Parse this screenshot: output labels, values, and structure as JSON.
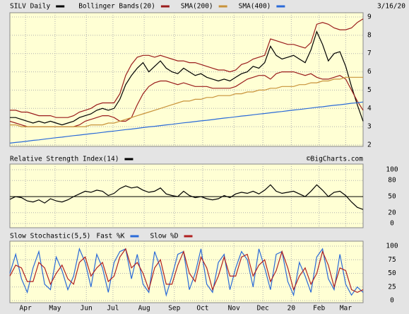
{
  "chart_data": [
    {
      "type": "line",
      "title": "SILV Daily",
      "date": "3/16/20",
      "xlim": [
        0,
        61
      ],
      "xticks": [
        {
          "value": 2.7,
          "label": "Apr"
        },
        {
          "value": 7.8,
          "label": "May"
        },
        {
          "value": 13.2,
          "label": "Jun"
        },
        {
          "value": 17.8,
          "label": "Jul"
        },
        {
          "value": 23.2,
          "label": "Aug"
        },
        {
          "value": 28.4,
          "label": "Sep"
        },
        {
          "value": 33.3,
          "label": "Oct"
        },
        {
          "value": 38.7,
          "label": "Nov"
        },
        {
          "value": 43.7,
          "label": "Dec"
        },
        {
          "value": 48.6,
          "label": "20"
        },
        {
          "value": 53.4,
          "label": "Feb"
        },
        {
          "value": 58,
          "label": "Mar"
        }
      ],
      "ylim": [
        2,
        9
      ],
      "yticks": [
        2,
        3,
        4,
        5,
        6,
        7,
        8,
        9
      ],
      "grid": true,
      "series": [
        {
          "name": "SILV Daily",
          "color": "#000000",
          "values": [
            3.5,
            3.5,
            3.4,
            3.3,
            3.2,
            3.3,
            3.2,
            3.3,
            3.2,
            3.1,
            3.2,
            3.3,
            3.5,
            3.6,
            3.7,
            3.9,
            4.0,
            3.9,
            4.0,
            4.5,
            5.3,
            5.8,
            6.2,
            6.5,
            6.0,
            6.3,
            6.6,
            6.2,
            6.0,
            5.9,
            6.2,
            6.0,
            5.8,
            5.9,
            5.7,
            5.6,
            5.5,
            5.6,
            5.5,
            5.7,
            5.9,
            6.0,
            6.3,
            6.2,
            6.5,
            7.4,
            6.9,
            6.7,
            6.8,
            6.9,
            6.7,
            6.5,
            7.2,
            8.2,
            7.5,
            6.6,
            7.0,
            7.1,
            6.3,
            5.2,
            4.2,
            3.3
          ]
        },
        {
          "name": "Bollinger Bands(20)",
          "color": "#9a1c1c",
          "values": [
            3.9,
            3.9,
            3.8,
            3.8,
            3.7,
            3.6,
            3.6,
            3.6,
            3.5,
            3.5,
            3.5,
            3.6,
            3.8,
            3.9,
            4.0,
            4.2,
            4.3,
            4.3,
            4.3,
            4.8,
            5.8,
            6.4,
            6.8,
            6.9,
            6.9,
            6.8,
            6.9,
            6.8,
            6.7,
            6.6,
            6.6,
            6.5,
            6.5,
            6.4,
            6.3,
            6.2,
            6.1,
            6.1,
            6.0,
            6.1,
            6.4,
            6.5,
            6.7,
            6.8,
            6.9,
            7.8,
            7.7,
            7.6,
            7.5,
            7.5,
            7.4,
            7.3,
            7.6,
            8.6,
            8.7,
            8.6,
            8.4,
            8.3,
            8.3,
            8.4,
            8.7,
            8.9
          ],
          "lower": [
            3.3,
            3.2,
            3.1,
            3.0,
            3.0,
            3.0,
            3.0,
            3.0,
            3.0,
            3.0,
            3.0,
            3.0,
            3.1,
            3.3,
            3.4,
            3.5,
            3.6,
            3.6,
            3.5,
            3.3,
            3.3,
            3.5,
            4.2,
            4.8,
            5.2,
            5.4,
            5.5,
            5.5,
            5.4,
            5.3,
            5.4,
            5.3,
            5.2,
            5.2,
            5.2,
            5.1,
            5.1,
            5.1,
            5.1,
            5.2,
            5.4,
            5.6,
            5.7,
            5.8,
            5.8,
            5.6,
            5.9,
            6.0,
            6.0,
            6.0,
            5.9,
            5.8,
            5.9,
            5.7,
            5.6,
            5.6,
            5.7,
            5.8,
            5.6,
            5.0,
            4.4,
            3.9
          ]
        },
        {
          "name": "SMA(200)",
          "color": "#c8923a",
          "values": [
            3.1,
            3.1,
            3.0,
            3.0,
            3.0,
            3.0,
            3.0,
            3.0,
            3.0,
            3.0,
            3.0,
            3.0,
            3.0,
            3.0,
            3.1,
            3.1,
            3.1,
            3.2,
            3.2,
            3.3,
            3.4,
            3.5,
            3.6,
            3.7,
            3.8,
            3.9,
            4.0,
            4.1,
            4.2,
            4.3,
            4.4,
            4.4,
            4.5,
            4.5,
            4.6,
            4.6,
            4.7,
            4.7,
            4.7,
            4.8,
            4.8,
            4.9,
            4.9,
            5.0,
            5.0,
            5.1,
            5.1,
            5.2,
            5.2,
            5.2,
            5.3,
            5.3,
            5.4,
            5.4,
            5.5,
            5.5,
            5.6,
            5.6,
            5.7,
            5.7,
            5.7,
            5.7
          ]
        },
        {
          "name": "SMA(400)",
          "color": "#2a6ad8",
          "values": [
            2.1,
            2.14,
            2.17,
            2.21,
            2.25,
            2.28,
            2.32,
            2.36,
            2.4,
            2.43,
            2.47,
            2.51,
            2.54,
            2.58,
            2.62,
            2.65,
            2.69,
            2.73,
            2.76,
            2.8,
            2.84,
            2.87,
            2.91,
            2.95,
            2.99,
            3.02,
            3.06,
            3.1,
            3.13,
            3.17,
            3.21,
            3.24,
            3.28,
            3.32,
            3.35,
            3.39,
            3.43,
            3.47,
            3.5,
            3.54,
            3.58,
            3.61,
            3.65,
            3.69,
            3.72,
            3.76,
            3.8,
            3.83,
            3.87,
            3.91,
            3.94,
            3.98,
            4.02,
            4.06,
            4.09,
            4.13,
            4.17,
            4.2,
            4.24,
            4.28,
            4.31,
            4.35
          ]
        }
      ]
    },
    {
      "type": "line",
      "title": "Relative Strength Index(14)",
      "source": "©BigCharts.com",
      "xlim": [
        0,
        61
      ],
      "ylim": [
        0,
        100
      ],
      "yticks": [
        0,
        20,
        50,
        80,
        100
      ],
      "refline": 50,
      "grid": true,
      "series": [
        {
          "name": "Relative Strength Index(14)",
          "color": "#000000",
          "values": [
            45,
            50,
            48,
            42,
            40,
            44,
            38,
            46,
            42,
            40,
            44,
            50,
            55,
            60,
            58,
            62,
            60,
            52,
            56,
            65,
            70,
            66,
            68,
            62,
            58,
            60,
            66,
            55,
            52,
            50,
            60,
            52,
            48,
            50,
            46,
            44,
            46,
            52,
            48,
            55,
            58,
            56,
            60,
            55,
            62,
            72,
            60,
            56,
            58,
            60,
            55,
            50,
            60,
            72,
            62,
            50,
            58,
            60,
            52,
            40,
            30,
            26
          ]
        }
      ]
    },
    {
      "type": "line",
      "title": "Slow Stochastic(5,5)",
      "xlim": [
        0,
        61
      ],
      "ylim": [
        0,
        100
      ],
      "yticks": [
        0,
        25,
        50,
        75,
        100
      ],
      "grid": true,
      "series": [
        {
          "name": "Fast %K",
          "color": "#2a6ad8",
          "values": [
            50,
            85,
            40,
            15,
            60,
            90,
            30,
            20,
            80,
            55,
            20,
            45,
            95,
            70,
            25,
            85,
            60,
            15,
            70,
            90,
            95,
            40,
            85,
            30,
            15,
            90,
            60,
            10,
            45,
            85,
            90,
            20,
            50,
            95,
            30,
            15,
            70,
            85,
            20,
            60,
            90,
            75,
            25,
            95,
            60,
            20,
            85,
            90,
            35,
            10,
            70,
            45,
            15,
            80,
            95,
            40,
            20,
            85,
            30,
            10,
            25,
            15
          ]
        },
        {
          "name": "Slow %D",
          "color": "#b02020",
          "values": [
            45,
            65,
            60,
            35,
            35,
            70,
            60,
            30,
            50,
            65,
            40,
            30,
            70,
            80,
            45,
            60,
            70,
            35,
            45,
            80,
            95,
            60,
            70,
            50,
            20,
            60,
            75,
            30,
            30,
            65,
            90,
            50,
            35,
            80,
            60,
            20,
            45,
            80,
            45,
            45,
            80,
            85,
            45,
            65,
            75,
            35,
            55,
            90,
            60,
            20,
            45,
            60,
            30,
            50,
            90,
            65,
            25,
            60,
            55,
            20,
            15,
            20
          ]
        }
      ]
    }
  ]
}
